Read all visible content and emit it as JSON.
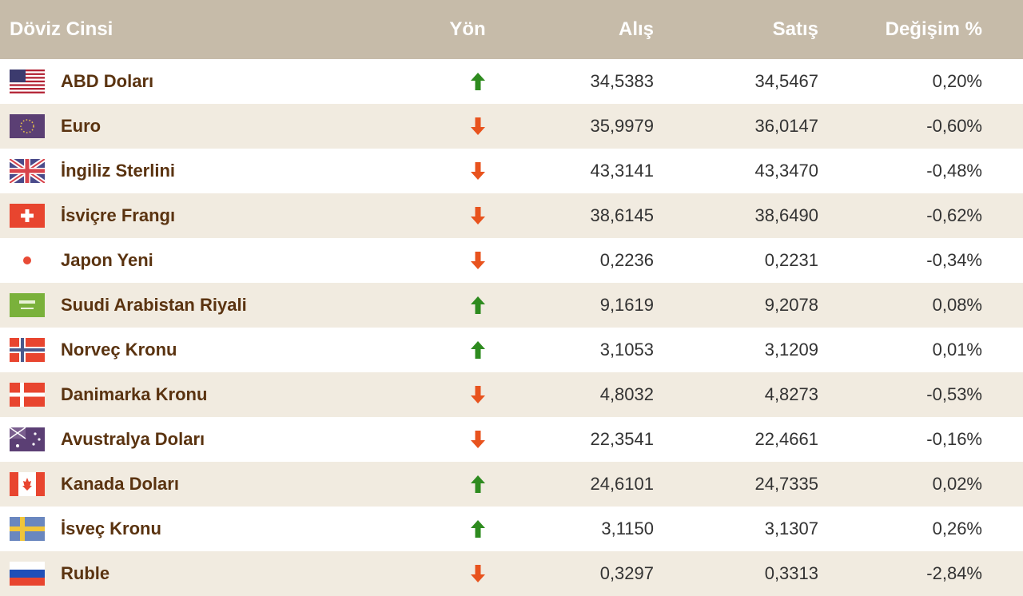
{
  "header": {
    "currency": "Döviz Cinsi",
    "direction": "Yön",
    "buy": "Alış",
    "sell": "Satış",
    "change": "Değişim %"
  },
  "colors": {
    "up": "#2e8b1f",
    "down": "#e8531e",
    "name": "#5a3310",
    "header_bg": "#c6bba9",
    "stripe": "#f1ebe0"
  },
  "rows": [
    {
      "name": "ABD Doları",
      "flag": "usa-flag-icon",
      "direction": "up",
      "buy": "34,5383",
      "sell": "34,5467",
      "change": "0,20%"
    },
    {
      "name": "Euro",
      "flag": "eu-flag-icon",
      "direction": "down",
      "buy": "35,9979",
      "sell": "36,0147",
      "change": "-0,60%"
    },
    {
      "name": "İngiliz Sterlini",
      "flag": "uk-flag-icon",
      "direction": "down",
      "buy": "43,3141",
      "sell": "43,3470",
      "change": "-0,48%"
    },
    {
      "name": "İsviçre Frangı",
      "flag": "switzerland-flag-icon",
      "direction": "down",
      "buy": "38,6145",
      "sell": "38,6490",
      "change": "-0,62%"
    },
    {
      "name": "Japon Yeni",
      "flag": "japan-flag-icon",
      "direction": "down",
      "buy": "0,2236",
      "sell": "0,2231",
      "change": "-0,34%"
    },
    {
      "name": "Suudi Arabistan Riyali",
      "flag": "saudi-arabia-flag-icon",
      "direction": "up",
      "buy": "9,1619",
      "sell": "9,2078",
      "change": "0,08%"
    },
    {
      "name": "Norveç Kronu",
      "flag": "norway-flag-icon",
      "direction": "up",
      "buy": "3,1053",
      "sell": "3,1209",
      "change": "0,01%"
    },
    {
      "name": "Danimarka Kronu",
      "flag": "denmark-flag-icon",
      "direction": "down",
      "buy": "4,8032",
      "sell": "4,8273",
      "change": "-0,53%"
    },
    {
      "name": "Avustralya Doları",
      "flag": "australia-flag-icon",
      "direction": "down",
      "buy": "22,3541",
      "sell": "22,4661",
      "change": "-0,16%"
    },
    {
      "name": "Kanada Doları",
      "flag": "canada-flag-icon",
      "direction": "up",
      "buy": "24,6101",
      "sell": "24,7335",
      "change": "0,02%"
    },
    {
      "name": "İsveç Kronu",
      "flag": "sweden-flag-icon",
      "direction": "up",
      "buy": "3,1150",
      "sell": "3,1307",
      "change": "0,26%"
    },
    {
      "name": "Ruble",
      "flag": "russia-flag-icon",
      "direction": "down",
      "buy": "0,3297",
      "sell": "0,3313",
      "change": "-2,84%"
    }
  ]
}
